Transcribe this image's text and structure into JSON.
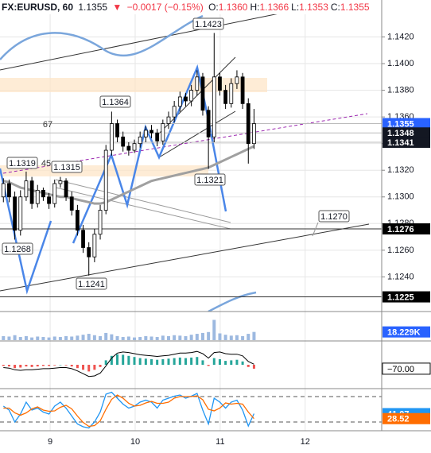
{
  "header": {
    "symbol": "FX:EURUSD, 60",
    "last": 1.1355,
    "change": "−0.0017 (−0.15%)",
    "ohlc": [
      {
        "name": "O:",
        "value": 1.136,
        "label": "1.1360"
      },
      {
        "name": "H:",
        "value": 1.1366
      },
      {
        "name": "L:",
        "value": 1.1353
      },
      {
        "name": "C:",
        "value": 1.1355
      }
    ]
  },
  "chart_data": {
    "type": "candlestick",
    "x": [
      8.45,
      8.517,
      8.584,
      8.651,
      8.718,
      8.785,
      8.852,
      8.919,
      8.986,
      9.053,
      9.12,
      9.187,
      9.254,
      9.321,
      9.388,
      9.455,
      9.522,
      9.589,
      9.656,
      9.723,
      9.79,
      9.857,
      9.924,
      9.991,
      10.058,
      10.125,
      10.192,
      10.259,
      10.326,
      10.393,
      10.46,
      10.527,
      10.594,
      10.661,
      10.728,
      10.795,
      10.862,
      10.929,
      10.996,
      11.063,
      11.13,
      11.197,
      11.264,
      11.331,
      11.398
    ],
    "open": [
      1.13,
      1.131,
      1.13,
      1.1275,
      1.13,
      1.1312,
      1.1295,
      1.1305,
      1.13,
      1.1295,
      1.131,
      1.1312,
      1.13,
      1.129,
      1.1275,
      1.1262,
      1.1255,
      1.1272,
      1.129,
      1.1335,
      1.1355,
      1.1345,
      1.1338,
      1.1335,
      1.134,
      1.1345,
      1.135,
      1.1348,
      1.1342,
      1.1355,
      1.136,
      1.1368,
      1.1375,
      1.1372,
      1.138,
      1.139,
      1.1365,
      1.1345,
      1.139,
      1.138,
      1.137,
      1.1385,
      1.139,
      1.137,
      1.134
    ],
    "high": [
      1.1314,
      1.1313,
      1.1304,
      1.1305,
      1.1319,
      1.1315,
      1.1309,
      1.1307,
      1.1303,
      1.1313,
      1.1315,
      1.1314,
      1.1304,
      1.1294,
      1.1279,
      1.1266,
      1.1276,
      1.1294,
      1.1339,
      1.1364,
      1.1358,
      1.1349,
      1.1341,
      1.1343,
      1.1349,
      1.1353,
      1.1354,
      1.1351,
      1.1358,
      1.1364,
      1.1372,
      1.1379,
      1.1378,
      1.1384,
      1.1395,
      1.1393,
      1.1368,
      1.1423,
      1.1393,
      1.1384,
      1.1389,
      1.1395,
      1.1393,
      1.1374,
      1.1366
    ],
    "low": [
      1.1296,
      1.1296,
      1.1268,
      1.1271,
      1.1297,
      1.1291,
      1.1292,
      1.1297,
      1.1291,
      1.1292,
      1.1307,
      1.1297,
      1.1286,
      1.1271,
      1.1258,
      1.1241,
      1.1251,
      1.1268,
      1.1287,
      1.1331,
      1.1341,
      1.1334,
      1.1331,
      1.1333,
      1.1337,
      1.1341,
      1.1344,
      1.1338,
      1.1339,
      1.1351,
      1.1356,
      1.1364,
      1.1368,
      1.1368,
      1.1376,
      1.1361,
      1.1321,
      1.1341,
      1.1376,
      1.1366,
      1.1367,
      1.1381,
      1.1366,
      1.1325,
      1.1336
    ],
    "close": [
      1.131,
      1.13,
      1.1275,
      1.13,
      1.1312,
      1.1295,
      1.1305,
      1.13,
      1.1295,
      1.131,
      1.1312,
      1.13,
      1.129,
      1.1275,
      1.1262,
      1.1255,
      1.1272,
      1.129,
      1.1335,
      1.1355,
      1.1345,
      1.1338,
      1.1335,
      1.134,
      1.1345,
      1.135,
      1.1348,
      1.1342,
      1.1355,
      1.136,
      1.1368,
      1.1375,
      1.1372,
      1.138,
      1.139,
      1.1365,
      1.1345,
      1.139,
      1.138,
      1.137,
      1.1385,
      1.139,
      1.137,
      1.134,
      1.1355
    ],
    "up_color": "#ffffff",
    "down_color": "#000000",
    "xlim": [
      8.41,
      12.9
    ],
    "xticks": [
      9,
      10,
      11,
      12
    ],
    "ylim": [
      1.1214,
      1.1437
    ],
    "yticks": [
      {
        "value": 1.124,
        "label": "1.1240"
      },
      {
        "value": 1.126,
        "label": "1.1260"
      },
      {
        "value": 1.128,
        "label": "1.1280"
      },
      {
        "value": 1.13,
        "label": "1.1300"
      },
      {
        "value": 1.132,
        "label": "1.1320"
      },
      {
        "value": 1.134,
        "label": "1.1340"
      },
      {
        "value": 1.136,
        "label": "1.1360"
      },
      {
        "value": 1.138,
        "label": "1.1380"
      },
      {
        "value": 1.14,
        "label": "1.1400"
      },
      {
        "value": 1.142,
        "label": "1.1420"
      }
    ],
    "grid": true,
    "moving_average": {
      "color": "#a0a0a0",
      "values": [
        1.1312,
        1.1311,
        1.1309,
        1.1307,
        1.1306,
        1.1305,
        1.1304,
        1.1303,
        1.1302,
        1.1301,
        1.13,
        1.13,
        1.1299,
        1.1298,
        1.1297,
        1.1296,
        1.1295,
        1.1295,
        1.1296,
        1.1298,
        1.13,
        1.1302,
        1.1304,
        1.1306,
        1.1308,
        1.131,
        1.1312,
        1.1313,
        1.1314,
        1.1315,
        1.1316,
        1.1317,
        1.1318,
        1.1319,
        1.132,
        1.1321,
        1.1322,
        1.1324,
        1.1326,
        1.1328,
        1.133,
        1.1332,
        1.1334,
        1.1336,
        1.1338
      ]
    },
    "price_labels": [
      {
        "value": 1.1355,
        "color": "#2962ff"
      },
      {
        "value": 1.1348,
        "color": "#131722"
      },
      {
        "value": 1.1341,
        "color": "#131722"
      },
      {
        "value": 1.1276,
        "color": "#000000"
      },
      {
        "value": 1.1225,
        "color": "#000000"
      }
    ],
    "annotations": [
      {
        "value": 1.1423
      },
      {
        "value": 1.1364
      },
      {
        "value": 1.1319
      },
      {
        "value": 1.1315
      },
      {
        "value": 1.1321
      },
      {
        "value": 1.1268
      },
      {
        "value": 1.1241
      },
      {
        "value": 1.127,
        "label": "1.1270"
      }
    ],
    "notes": [
      67,
      45
    ],
    "volume": {
      "color": "#9db9e0",
      "ylim": [
        0,
        60000
      ],
      "last": {
        "value": 18229,
        "label": "18.229K"
      },
      "values": [
        9000,
        8000,
        11000,
        7000,
        9000,
        6000,
        8000,
        7000,
        6000,
        8000,
        7000,
        9000,
        8000,
        10000,
        12000,
        14000,
        11000,
        9000,
        16000,
        13000,
        9000,
        7000,
        8000,
        6000,
        7000,
        9000,
        8000,
        7000,
        10000,
        9000,
        11000,
        10000,
        9000,
        12000,
        14000,
        16000,
        18000,
        45000,
        15000,
        12000,
        10000,
        11000,
        9000,
        14000,
        18229
      ]
    },
    "macd": {
      "ylim": [
        -400,
        400
      ],
      "up_color": "#26a69a",
      "down_color": "#ef5350",
      "line_color": "#000000",
      "last": {
        "value": -70,
        "label": "−70.00"
      },
      "histogram": [
        -20,
        -30,
        -60,
        -50,
        -30,
        -40,
        -30,
        -20,
        -20,
        -10,
        0,
        -10,
        -30,
        -60,
        -90,
        -120,
        -90,
        -40,
        80,
        160,
        190,
        180,
        160,
        140,
        120,
        110,
        100,
        90,
        100,
        110,
        120,
        130,
        120,
        130,
        140,
        80,
        -20,
        120,
        100,
        70,
        80,
        90,
        60,
        -40,
        -70
      ],
      "line": [
        -50,
        -60,
        -90,
        -100,
        -90,
        -90,
        -80,
        -70,
        -70,
        -60,
        -50,
        -50,
        -70,
        -110,
        -160,
        -210,
        -200,
        -150,
        -20,
        120,
        210,
        230,
        220,
        200,
        180,
        170,
        160,
        150,
        160,
        170,
        190,
        210,
        210,
        220,
        240,
        200,
        120,
        220,
        230,
        200,
        190,
        190,
        160,
        60,
        10
      ]
    },
    "stochastic": {
      "ylim": [
        0,
        100
      ],
      "series": [
        {
          "color": "#2196f3",
          "values": [
            60,
            50,
            20,
            40,
            70,
            50,
            55,
            45,
            40,
            60,
            70,
            55,
            35,
            15,
            8,
            5,
            20,
            45,
            90,
            95,
            80,
            65,
            55,
            60,
            70,
            75,
            70,
            55,
            75,
            80,
            85,
            88,
            80,
            85,
            92,
            50,
            15,
            80,
            70,
            55,
            70,
            75,
            50,
            10,
            41.07
          ]
        },
        {
          "color": "#ff6d00",
          "values": [
            55,
            55,
            43,
            37,
            43,
            53,
            58,
            50,
            47,
            48,
            57,
            62,
            53,
            35,
            19,
            9,
            11,
            23,
            52,
            77,
            88,
            80,
            67,
            60,
            62,
            68,
            72,
            67,
            67,
            70,
            80,
            84,
            84,
            84,
            86,
            76,
            52,
            48,
            55,
            68,
            65,
            67,
            65,
            45,
            28.52
          ]
        }
      ]
    }
  }
}
